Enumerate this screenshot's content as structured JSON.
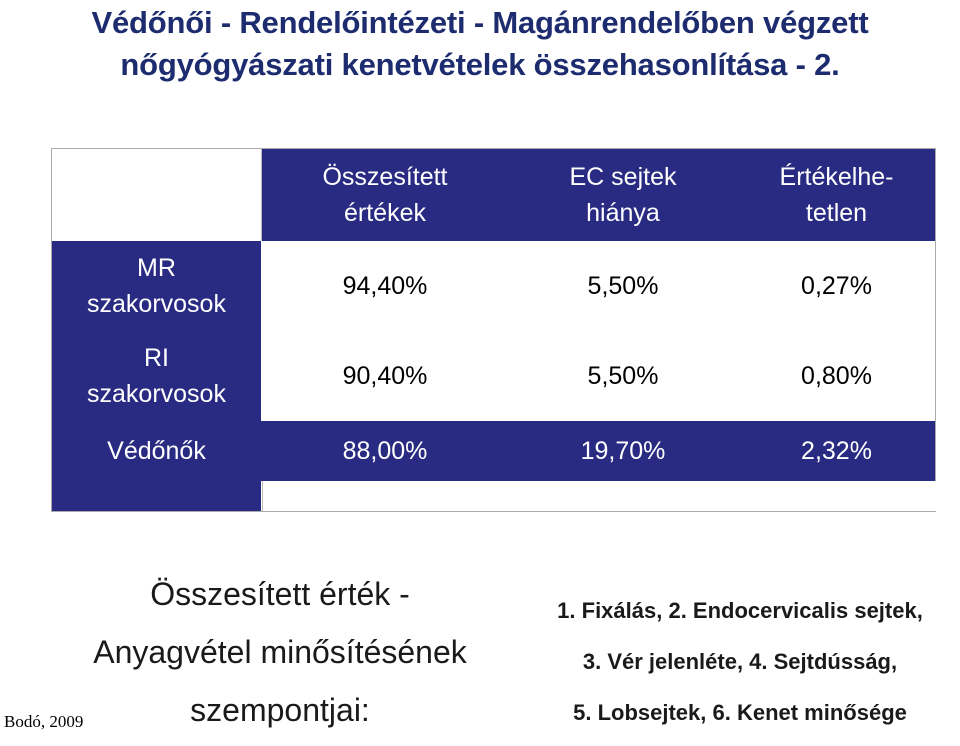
{
  "title": {
    "line1": "Védőnői - Rendelőintézeti - Magánrendelőben végzett",
    "line2": "nőgyógyászati kenetvételek összehasonlítása - 2."
  },
  "table": {
    "headers": [
      {
        "line1": "Összesített",
        "line2": "értékek"
      },
      {
        "line1": "EC sejtek",
        "line2": "hiánya"
      },
      {
        "line1": "Értékelhe-",
        "line2": "tetlen"
      }
    ],
    "rows": [
      {
        "label1": "MR",
        "label2": "szakorvosok",
        "values": [
          "94,40%",
          "5,50%",
          "0,27%"
        ]
      },
      {
        "label1": "RI",
        "label2": "szakorvosok",
        "values": [
          "90,40%",
          "5,50%",
          "0,80%"
        ]
      },
      {
        "label1": "Védőnők",
        "label2": "",
        "values": [
          "88,00%",
          "19,70%",
          "2,32%"
        ]
      }
    ]
  },
  "criteria": {
    "heading_line1": "Összesített érték -",
    "heading_line2": "Anyagvétel minősítésének",
    "heading_line3": "szempontjai:",
    "items_line1": "1. Fixálás, 2. Endocervicalis sejtek,",
    "items_line2": "3. Vér jelenléte, 4. Sejtdússág,",
    "items_line3": "5. Lobsejtek, 6. Kenet minősége"
  },
  "credit": "Bodó, 2009",
  "colors": {
    "navy": "#292b83",
    "title": "#1d2b6f"
  }
}
